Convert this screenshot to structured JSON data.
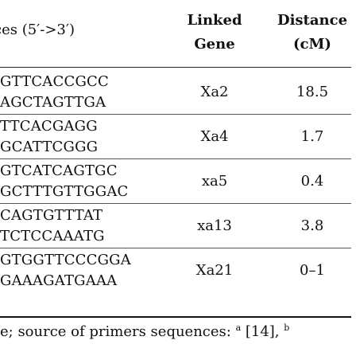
{
  "header": {
    "sequences": "ces (5′->3′)",
    "linked_line1": "Linked",
    "linked_line2": "Gene",
    "distance_line1": "Distance",
    "distance_line2": "(cM)"
  },
  "rows": [
    {
      "seq1": "GTTCACCGCC",
      "seq2": "AGCTAGTTGA",
      "gene": "Xa2",
      "distance": "18.5"
    },
    {
      "seq1": "TTCACGAGG",
      "seq2": "GCATTCGGG",
      "gene": "Xa4",
      "distance": "1.7"
    },
    {
      "seq1": "GTCATCAGTGC",
      "seq2": "GCTTTGTTGGAC",
      "gene": "xa5",
      "distance": "0.4"
    },
    {
      "seq1": "CAGTGTTTAT",
      "seq2": "TCTCCAAATG",
      "gene": "xa13",
      "distance": "3.8"
    },
    {
      "seq1": "GTGGTTCCCGGA",
      "seq2": "GAAAGATGAAA",
      "gene": "Xa21",
      "distance": "0–1"
    }
  ],
  "footnote": {
    "text_before": "e; source of primers sequences: ",
    "sup_a": "a",
    "ref_a": " [14], ",
    "sup_b": "b"
  }
}
